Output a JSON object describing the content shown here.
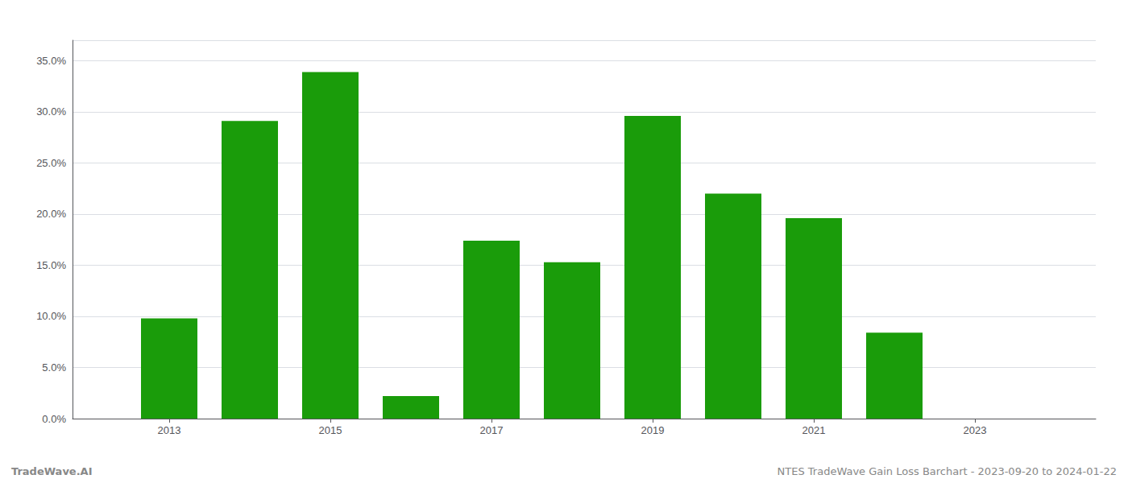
{
  "chart_data": {
    "type": "bar",
    "x": [
      2013,
      2014,
      2015,
      2016,
      2017,
      2018,
      2019,
      2020,
      2021,
      2022,
      2023
    ],
    "values": [
      0.098,
      0.291,
      0.339,
      0.022,
      0.174,
      0.153,
      0.296,
      0.22,
      0.196,
      0.084,
      0.0
    ],
    "color": "#1a9c0a",
    "xlim": [
      2011.8,
      2024.5
    ],
    "xticks": [
      2013,
      2015,
      2017,
      2019,
      2021,
      2023
    ],
    "ylim": [
      0,
      0.37
    ],
    "yticks": [
      {
        "value": 0.0,
        "label": "0.0%"
      },
      {
        "value": 0.05,
        "label": "5.0%"
      },
      {
        "value": 0.1,
        "label": "10.0%"
      },
      {
        "value": 0.15,
        "label": "15.0%"
      },
      {
        "value": 0.2,
        "label": "20.0%"
      },
      {
        "value": 0.25,
        "label": "25.0%"
      },
      {
        "value": 0.3,
        "label": "30.0%"
      },
      {
        "value": 0.35,
        "label": "35.0%"
      }
    ],
    "grid": true,
    "annotations": [
      "TradeWave.AI",
      "NTES TradeWave Gain Loss Barchart - 2023-09-20 to 2024-01-22"
    ]
  }
}
